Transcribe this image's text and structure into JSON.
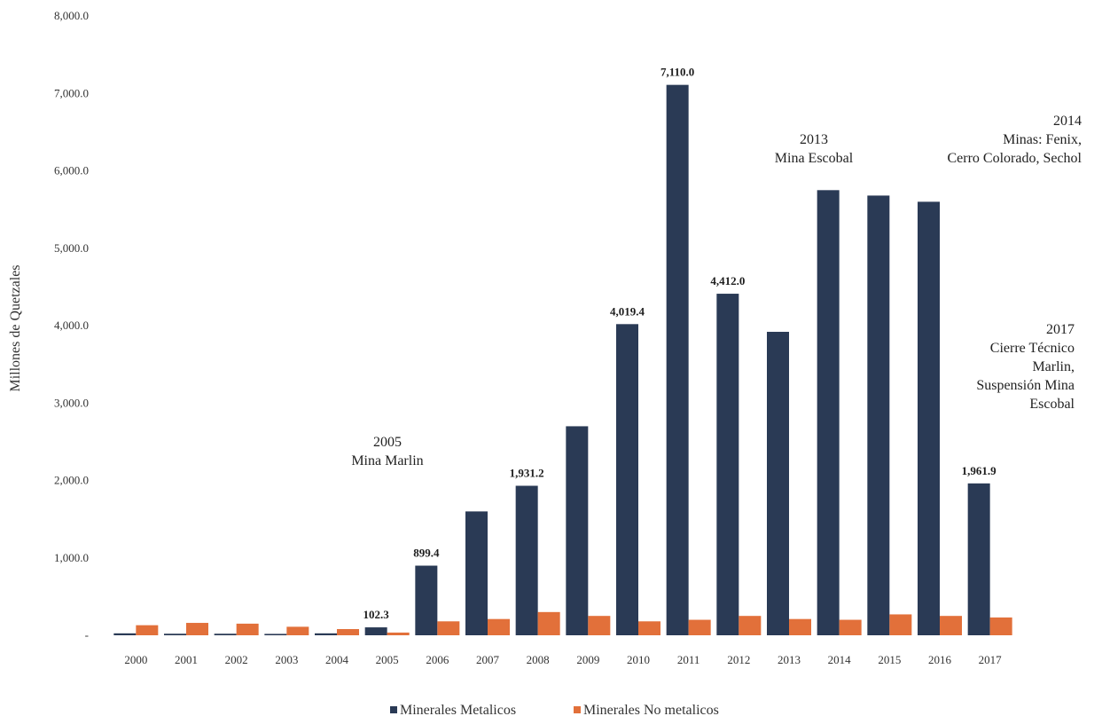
{
  "chart_data": {
    "type": "bar",
    "title": "",
    "xlabel": "",
    "ylabel": "Millones de Quetzales",
    "ylim": [
      0,
      8000
    ],
    "yticks": [
      "-",
      "1,000.0",
      "2,000.0",
      "3,000.0",
      "4,000.0",
      "5,000.0",
      "6,000.0",
      "7,000.0",
      "8,000.0"
    ],
    "categories": [
      "2000",
      "2001",
      "2002",
      "2003",
      "2004",
      "2005",
      "2006",
      "2007",
      "2008",
      "2009",
      "2010",
      "2011",
      "2012",
      "2013",
      "2014",
      "2015",
      "2016",
      "2017"
    ],
    "series": [
      {
        "name": "Minerales Metalicos",
        "color": "#2a3a55",
        "values": [
          25,
          20,
          20,
          18,
          25,
          102.3,
          899.4,
          1600,
          1931.2,
          2700,
          4019.4,
          7110.0,
          4412.0,
          3920,
          5750,
          5680,
          5600,
          1961.9
        ]
      },
      {
        "name": "Minerales No metalicos",
        "color": "#e2703a",
        "values": [
          130,
          160,
          150,
          110,
          80,
          35,
          180,
          210,
          300,
          250,
          180,
          200,
          250,
          210,
          200,
          270,
          250,
          230
        ]
      }
    ],
    "data_labels": [
      {
        "category": "2005",
        "text": "102.3"
      },
      {
        "category": "2006",
        "text": "899.4"
      },
      {
        "category": "2008",
        "text": "1,931.2"
      },
      {
        "category": "2010",
        "text": "4,019.4"
      },
      {
        "category": "2011",
        "text": "7,110.0"
      },
      {
        "category": "2012",
        "text": "4,412.0"
      },
      {
        "category": "2017",
        "text": "1,961.9"
      }
    ],
    "annotations": [
      {
        "category": "2005",
        "anchor": "middle",
        "lines": [
          "2005",
          "Mina Marlin"
        ]
      },
      {
        "category": "2013",
        "anchor": "middle",
        "lines": [
          "2013",
          "Mina Escobal"
        ]
      },
      {
        "category": "2014",
        "anchor": "end",
        "lines": [
          "2014",
          "Minas: Fenix,",
          "Cerro Colorado, Sechol"
        ]
      },
      {
        "category": "2017",
        "anchor": "end",
        "lines": [
          "2017",
          "Cierre Técnico",
          "Marlin,",
          "Suspensión Mina",
          "Escobal"
        ]
      }
    ],
    "grid": false,
    "legend": "bottom"
  }
}
